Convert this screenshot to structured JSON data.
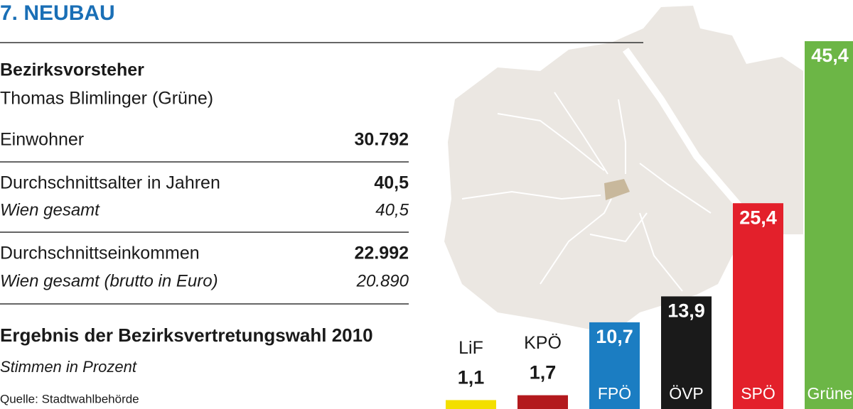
{
  "header": {
    "title": "7. NEUBAU"
  },
  "mayor": {
    "label": "Bezirksvorsteher",
    "name": "Thomas Blimlinger (Grüne)"
  },
  "stats": [
    {
      "label": "Einwohner",
      "value": "30.792"
    },
    {
      "label": "Durchschnittsalter in Jahren",
      "value": "40,5",
      "sub_label": "Wien gesamt",
      "sub_value": "40,5"
    },
    {
      "label": "Durchschnittseinkommen",
      "value": "22.992",
      "sub_label": "Wien gesamt (brutto in Euro)",
      "sub_value": "20.890"
    }
  ],
  "chart_data": {
    "type": "bar",
    "title": "Ergebnis der Bezirksvertretungswahl 2010",
    "subtitle": "Stimmen in Prozent",
    "source": "Quelle: Stadtwahlbehörde",
    "categories": [
      "LiF",
      "KPÖ",
      "FPÖ",
      "ÖVP",
      "SPÖ",
      "Grüne"
    ],
    "values": [
      1.1,
      1.7,
      10.7,
      13.9,
      25.4,
      45.4
    ],
    "value_labels": [
      "1,1",
      "1,7",
      "10,7",
      "13,9",
      "25,4",
      "45,4"
    ],
    "colors": [
      "#f3df00",
      "#b3191d",
      "#1b7dc2",
      "#1a1a1a",
      "#e3202b",
      "#6cb646"
    ],
    "ylim": [
      0,
      50
    ]
  }
}
